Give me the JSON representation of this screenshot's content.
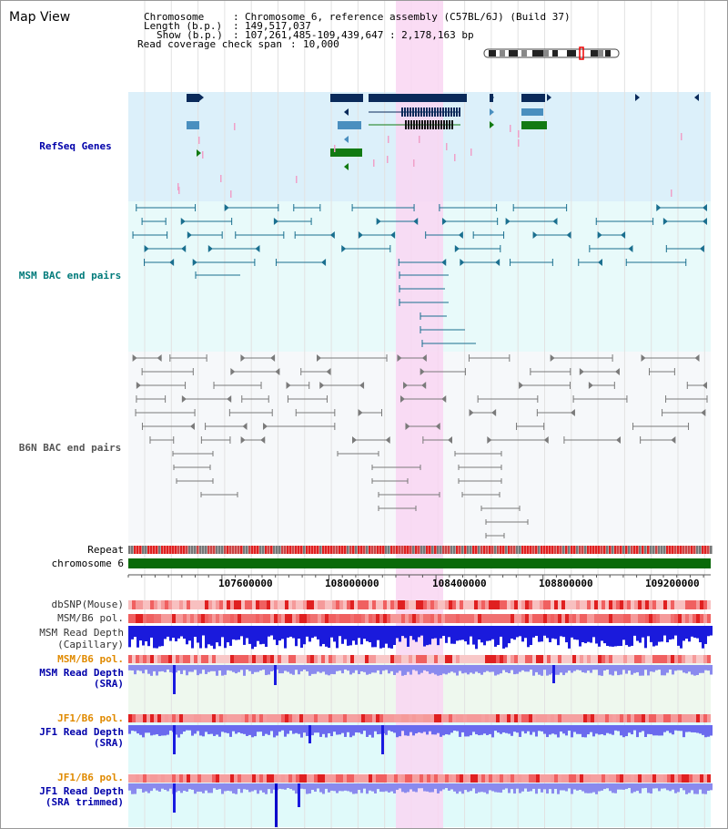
{
  "title": "Map View",
  "header": {
    "chromosome_key": "Chromosome",
    "chromosome_val": "Chromosome 6, reference assembly (C57BL/6J) (Build 37)",
    "length_key": "Length (b.p.)",
    "length_val": "149,517,037",
    "show_key": "Show (b.p.)",
    "show_val": "107,261,485-109,439,647 : 2,178,163 bp",
    "span_key": "Read coverage check span",
    "span_val": "10,000"
  },
  "tracks": {
    "refseq": "RefSeq Genes",
    "msm_bac": "MSM BAC end pairs",
    "b6n_bac": "B6N BAC end pairs",
    "repeat": "Repeat",
    "chromosome": "chromosome 6",
    "dbsnp": "dbSNP(Mouse)",
    "msm_b6_pol_1": "MSM/B6 pol.",
    "msm_read_depth_cap_1": "MSM Read Depth",
    "msm_read_depth_cap_2": "(Capillary)",
    "msm_b6_pol_2": "MSM/B6 pol.",
    "msm_read_depth_sra_1": "MSM Read Depth",
    "msm_read_depth_sra_2": "(SRA)",
    "jf1_b6_pol_1": "JF1/B6 pol.",
    "jf1_read_depth_sra_1": "JF1 Read Depth",
    "jf1_read_depth_sra_2": "(SRA)",
    "jf1_b6_pol_2": "JF1/B6 pol.",
    "jf1_read_depth_trim_1": "JF1 Read Depth",
    "jf1_read_depth_trim_2": "(SRA trimmed)"
  },
  "axis_ticks": [
    "107600000",
    "108000000",
    "108400000",
    "108800000",
    "109200000"
  ],
  "colors": {
    "highlight": "#f9d6f2",
    "refseq_bg": "#dcf0fa",
    "msm_bg": "#e8fafa",
    "b6n_bg": "#f6f8fa",
    "gene_navy": "#0a2a5a",
    "gene_blue": "#4a8fbf",
    "gene_green": "#127a12",
    "bac_teal": "#1a6f8f",
    "bac_gray": "#7a7a7a",
    "repeat_red": "#e02020",
    "chrom_green": "#0a6a0a",
    "depth_blue": "#1a1ae0",
    "label_blue": "#0000aa",
    "label_teal": "#007a7a",
    "label_orange": "#e08a00"
  }
}
